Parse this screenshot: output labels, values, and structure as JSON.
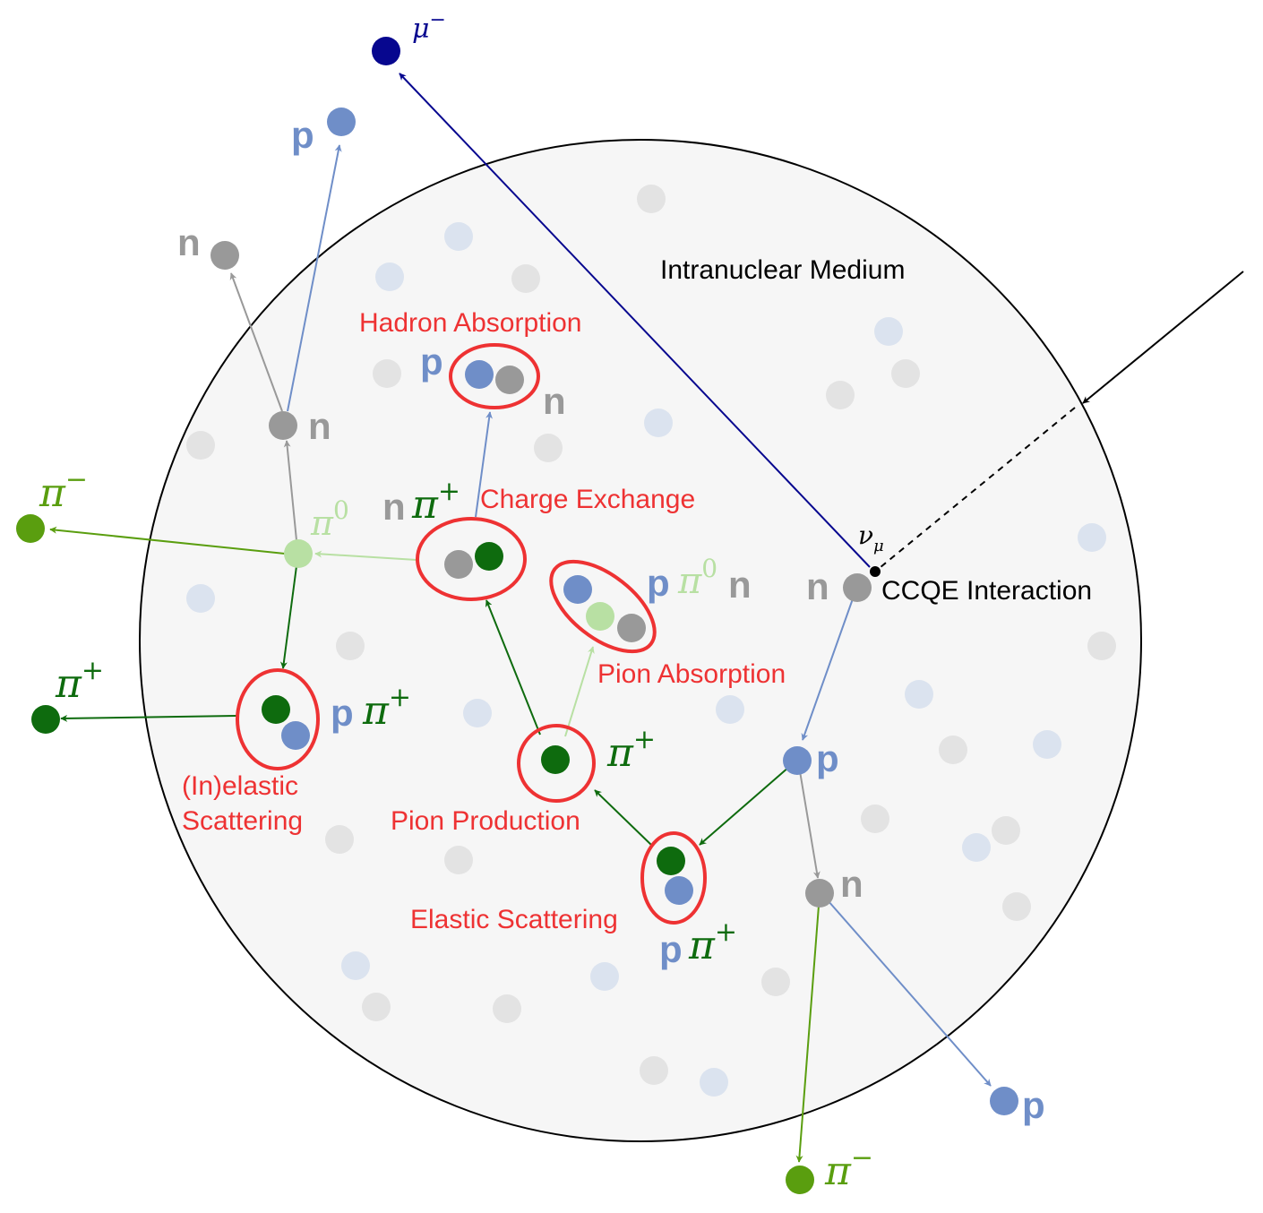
{
  "labels": {
    "medium": "Intranuclear Medium",
    "ccqe": "CCQE Interaction",
    "neutrino": "ν",
    "neutrino_sub": "μ",
    "hadron_absorption": "Hadron Absorption",
    "charge_exchange": "Charge Exchange",
    "pion_absorption": "Pion Absorption",
    "inelastic_line1": "(In)elastic",
    "inelastic_line2": "Scattering",
    "pion_production": "Pion Production",
    "elastic_scattering": "Elastic Scattering"
  },
  "particles": {
    "p": "p",
    "n": "n",
    "pi": "π",
    "mu": "μ",
    "plus": "+",
    "minus": "−",
    "zero": "0"
  },
  "colors": {
    "nucleus_fill": "#f6f6f6",
    "proton": "#6f8ec8",
    "neutron": "#999999",
    "pi_plus": "#0e6b0e",
    "pi_minus": "#5a9e0f",
    "pi_zero": "#b8e0a3",
    "muon": "#07078f",
    "interaction_label": "#ee3233",
    "bg_proton": "#dbe3ef",
    "bg_neutron": "#e3e3e3"
  }
}
